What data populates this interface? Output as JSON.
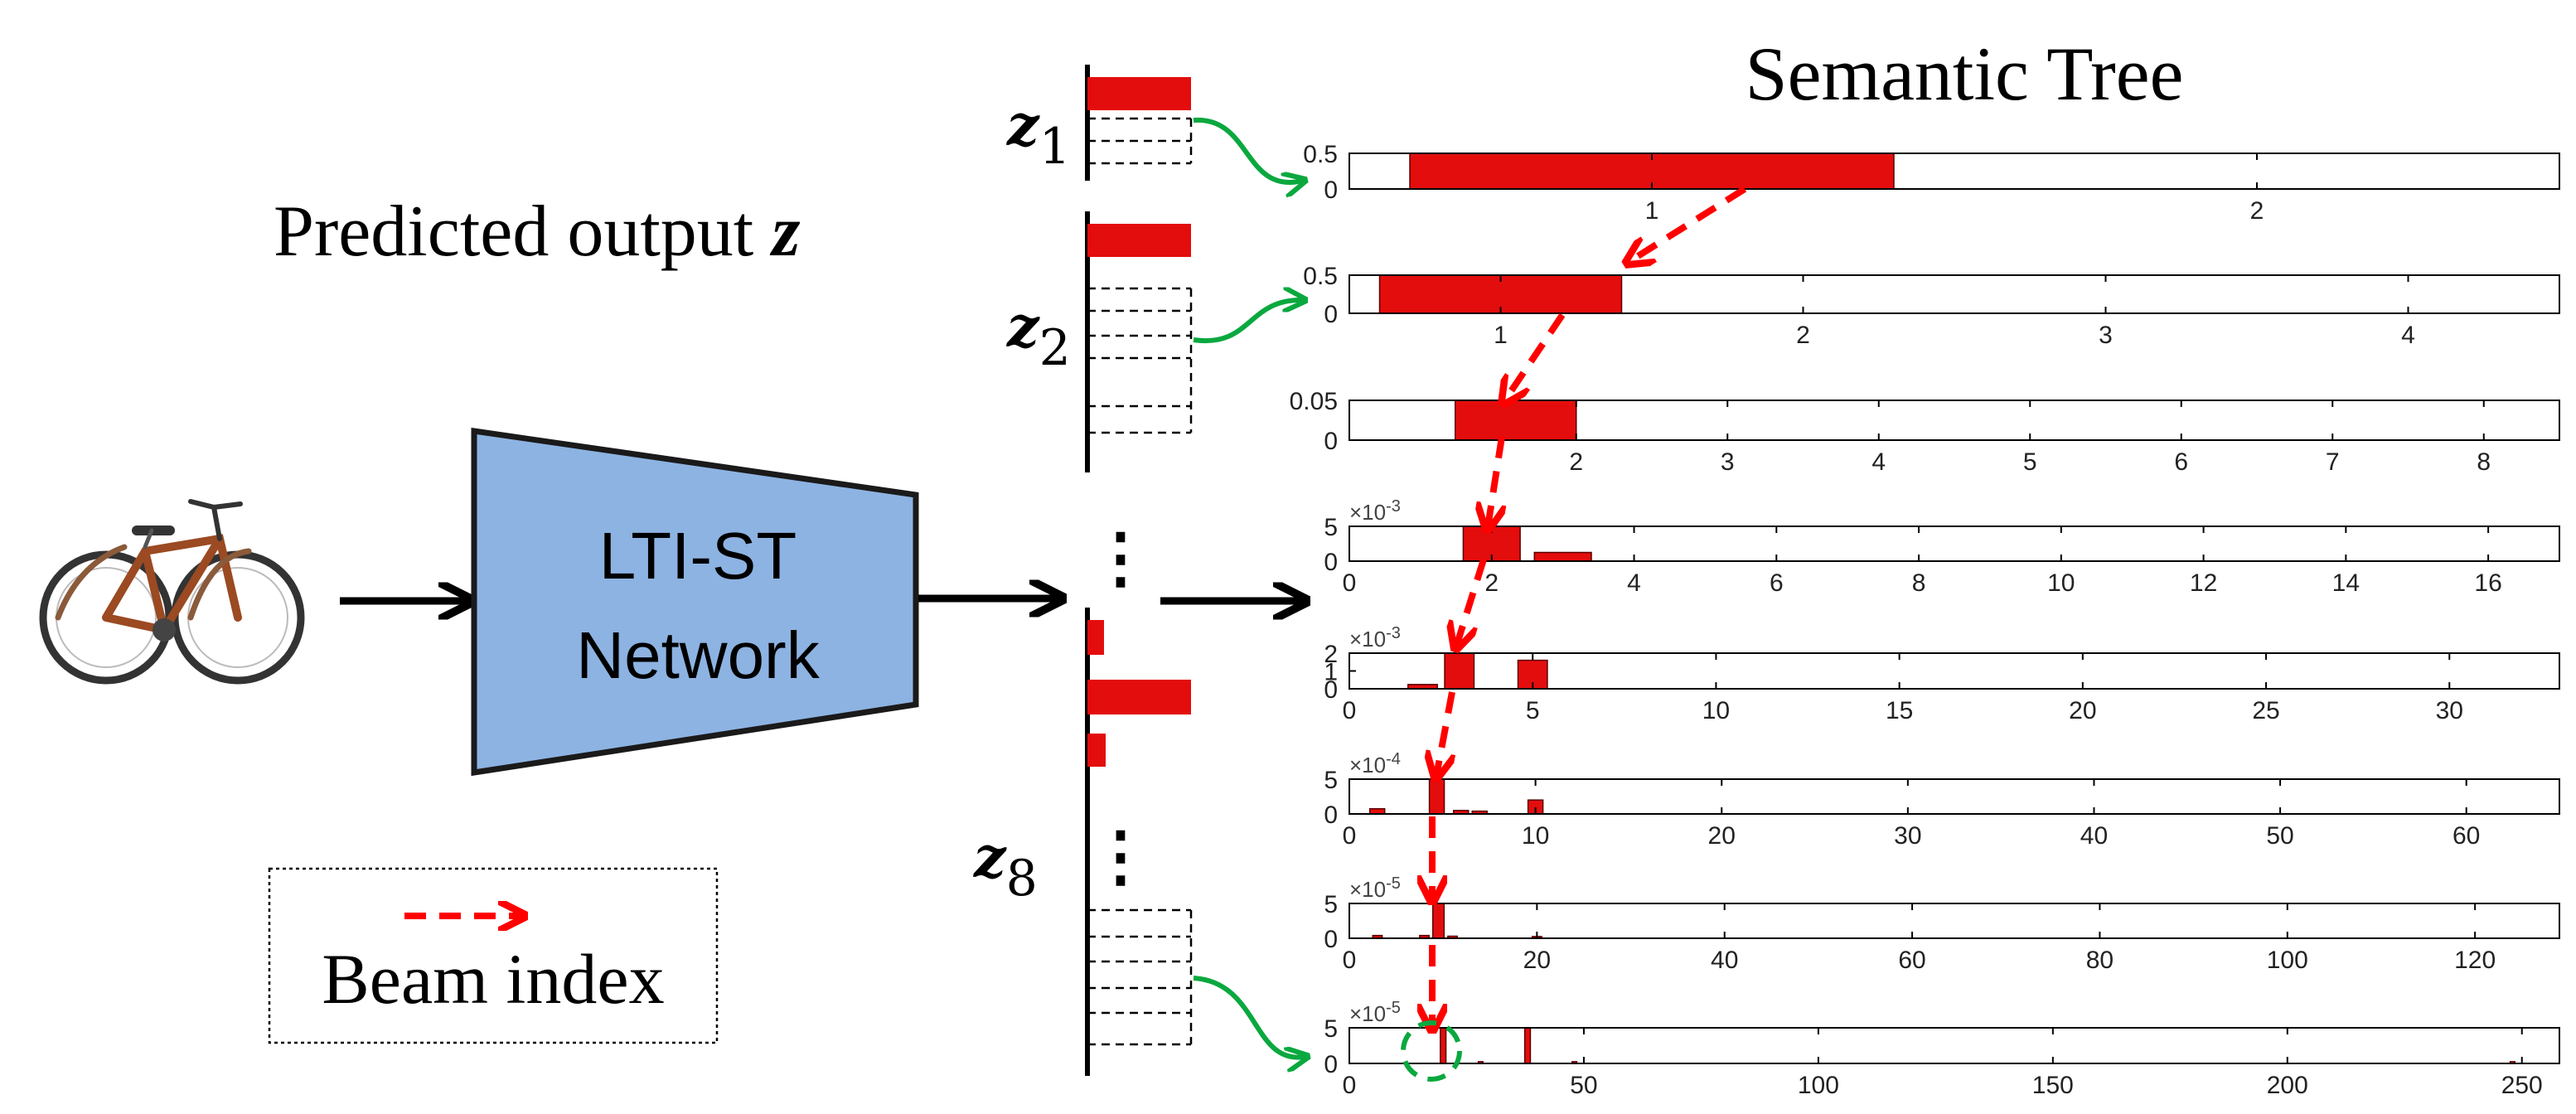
{
  "diagram": {
    "tree_title": "Semantic Tree",
    "predicted_label": "Predicted output ",
    "predicted_symbol": "z",
    "network_label_line1": "LTI-ST",
    "network_label_line2": "Network",
    "legend_label": "Beam index",
    "z_labels": [
      {
        "base": "z",
        "sub": "1"
      },
      {
        "base": "z",
        "sub": "2"
      },
      {
        "base": "z",
        "sub": "8"
      }
    ],
    "ellipsis": "⋮",
    "input_image": "bicycle-photo",
    "colors": {
      "bar": "#e30d0d",
      "network_fill": "#8db3e2",
      "beam_arrow": "#ff0000",
      "link_arrow": "#0aa83f"
    }
  },
  "chart_data": [
    {
      "type": "bar",
      "level": 1,
      "y_ticks": [
        "0",
        "0.5"
      ],
      "x_ticks": [
        1,
        2
      ],
      "xlim": [
        0.5,
        2.5
      ],
      "ylim": [
        0,
        0.5
      ],
      "bars": [
        {
          "x": 1,
          "width": 0.8,
          "value": 0.5
        }
      ]
    },
    {
      "type": "bar",
      "level": 2,
      "y_ticks": [
        "0",
        "0.5"
      ],
      "x_ticks": [
        1,
        2,
        3,
        4
      ],
      "xlim": [
        0.5,
        4.5
      ],
      "ylim": [
        0,
        0.5
      ],
      "bars": [
        {
          "x": 1,
          "width": 0.8,
          "value": 0.5
        }
      ]
    },
    {
      "type": "bar",
      "level": 3,
      "y_ticks": [
        "0",
        "0.05"
      ],
      "x_ticks": [
        2,
        3,
        4,
        5,
        6,
        7,
        8
      ],
      "xlim": [
        0.5,
        8.5
      ],
      "ylim": [
        0,
        0.05
      ],
      "bars": [
        {
          "x": 1.6,
          "width": 0.8,
          "value": 0.05
        }
      ]
    },
    {
      "type": "bar",
      "level": 4,
      "y_exponent": "-3",
      "y_ticks": [
        "0",
        "5"
      ],
      "x_ticks": [
        0,
        2,
        4,
        6,
        8,
        10,
        12,
        14,
        16
      ],
      "xlim": [
        0,
        17
      ],
      "ylim": [
        0,
        8
      ],
      "bars": [
        {
          "x": 2,
          "width": 0.8,
          "value": 8
        },
        {
          "x": 3,
          "width": 0.8,
          "value": 2
        }
      ]
    },
    {
      "type": "bar",
      "level": 5,
      "y_exponent": "-3",
      "y_ticks": [
        "0",
        "1",
        "2"
      ],
      "x_ticks": [
        0,
        5,
        10,
        15,
        20,
        25,
        30
      ],
      "xlim": [
        0,
        33
      ],
      "ylim": [
        0,
        2.5
      ],
      "bars": [
        {
          "x": 2,
          "width": 0.8,
          "value": 0.3
        },
        {
          "x": 3,
          "width": 0.8,
          "value": 2.5
        },
        {
          "x": 5,
          "width": 0.8,
          "value": 2
        }
      ]
    },
    {
      "type": "bar",
      "level": 6,
      "y_exponent": "-4",
      "y_ticks": [
        "0",
        "5"
      ],
      "x_ticks": [
        0,
        10,
        20,
        30,
        40,
        50,
        60
      ],
      "xlim": [
        0,
        65
      ],
      "ylim": [
        0,
        10
      ],
      "bars": [
        {
          "x": 1.5,
          "width": 0.8,
          "value": 1.5
        },
        {
          "x": 4.7,
          "width": 0.8,
          "value": 10
        },
        {
          "x": 6,
          "width": 0.8,
          "value": 1
        },
        {
          "x": 7,
          "width": 0.8,
          "value": 0.8
        },
        {
          "x": 10,
          "width": 0.8,
          "value": 4
        }
      ]
    },
    {
      "type": "bar",
      "level": 7,
      "y_exponent": "-5",
      "y_ticks": [
        "0",
        "5"
      ],
      "x_ticks": [
        0,
        20,
        40,
        60,
        80,
        100,
        120
      ],
      "xlim": [
        0,
        129
      ],
      "ylim": [
        0,
        10
      ],
      "bars": [
        {
          "x": 3,
          "width": 1,
          "value": 0.8
        },
        {
          "x": 8,
          "width": 1,
          "value": 0.8
        },
        {
          "x": 9.5,
          "width": 1.2,
          "value": 10
        },
        {
          "x": 11,
          "width": 1,
          "value": 0.6
        },
        {
          "x": 20,
          "width": 1,
          "value": 0.5
        }
      ]
    },
    {
      "type": "bar",
      "level": 8,
      "y_exponent": "-5",
      "y_ticks": [
        "0",
        "5"
      ],
      "x_ticks": [
        0,
        50,
        100,
        150,
        200,
        250
      ],
      "xlim": [
        0,
        258
      ],
      "ylim": [
        0,
        10
      ],
      "bars": [
        {
          "x": 20,
          "width": 1.2,
          "value": 10
        },
        {
          "x": 38,
          "width": 1.2,
          "value": 10
        },
        {
          "x": 28,
          "width": 1,
          "value": 0.5
        },
        {
          "x": 48,
          "width": 1,
          "value": 0.5
        },
        {
          "x": 248,
          "width": 1,
          "value": 0.5
        }
      ]
    }
  ]
}
